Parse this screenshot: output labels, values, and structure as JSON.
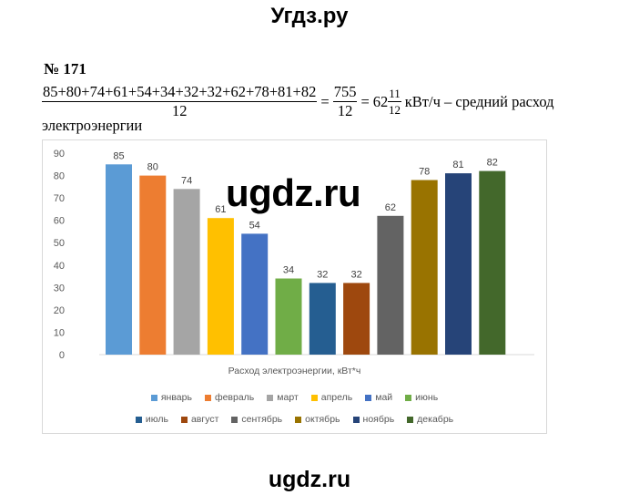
{
  "site_title": "Угдз.ру",
  "problem_number": "№ 171",
  "formula": {
    "numerator": "85+80+74+61+54+34+32+32+62+78+81+82",
    "denominator": "12",
    "equals1": "=",
    "numerator2": "755",
    "denominator2": "12",
    "equals2": "=",
    "whole": "62",
    "frac_num": "11",
    "frac_den": "12",
    "unit_text": "кВт/ч – средний расход",
    "line2": "электроэнергии"
  },
  "watermark_mid": "ugdz.ru",
  "watermark_bottom": "ugdz.ru",
  "chart_data": {
    "type": "bar",
    "xlabel": "Расход электроэнергии, кВт*ч",
    "ylim": [
      0,
      90
    ],
    "yticks": [
      0,
      10,
      20,
      30,
      40,
      50,
      60,
      70,
      80,
      90
    ],
    "grid": false,
    "legend_position": "bottom",
    "series": [
      {
        "name": "январь",
        "value": 85,
        "color": "#5B9BD5"
      },
      {
        "name": "февраль",
        "value": 80,
        "color": "#ED7D31"
      },
      {
        "name": "март",
        "value": 74,
        "color": "#A5A5A5"
      },
      {
        "name": "апрель",
        "value": 61,
        "color": "#FFC000"
      },
      {
        "name": "май",
        "value": 54,
        "color": "#4472C4"
      },
      {
        "name": "июнь",
        "value": 34,
        "color": "#70AD47"
      },
      {
        "name": "июль",
        "value": 32,
        "color": "#255E91"
      },
      {
        "name": "август",
        "value": 32,
        "color": "#9E480E"
      },
      {
        "name": "сентябрь",
        "value": 62,
        "color": "#636363"
      },
      {
        "name": "октябрь",
        "value": 78,
        "color": "#997300"
      },
      {
        "name": "ноябрь",
        "value": 81,
        "color": "#264478"
      },
      {
        "name": "декабрь",
        "value": 82,
        "color": "#43682B"
      }
    ]
  }
}
